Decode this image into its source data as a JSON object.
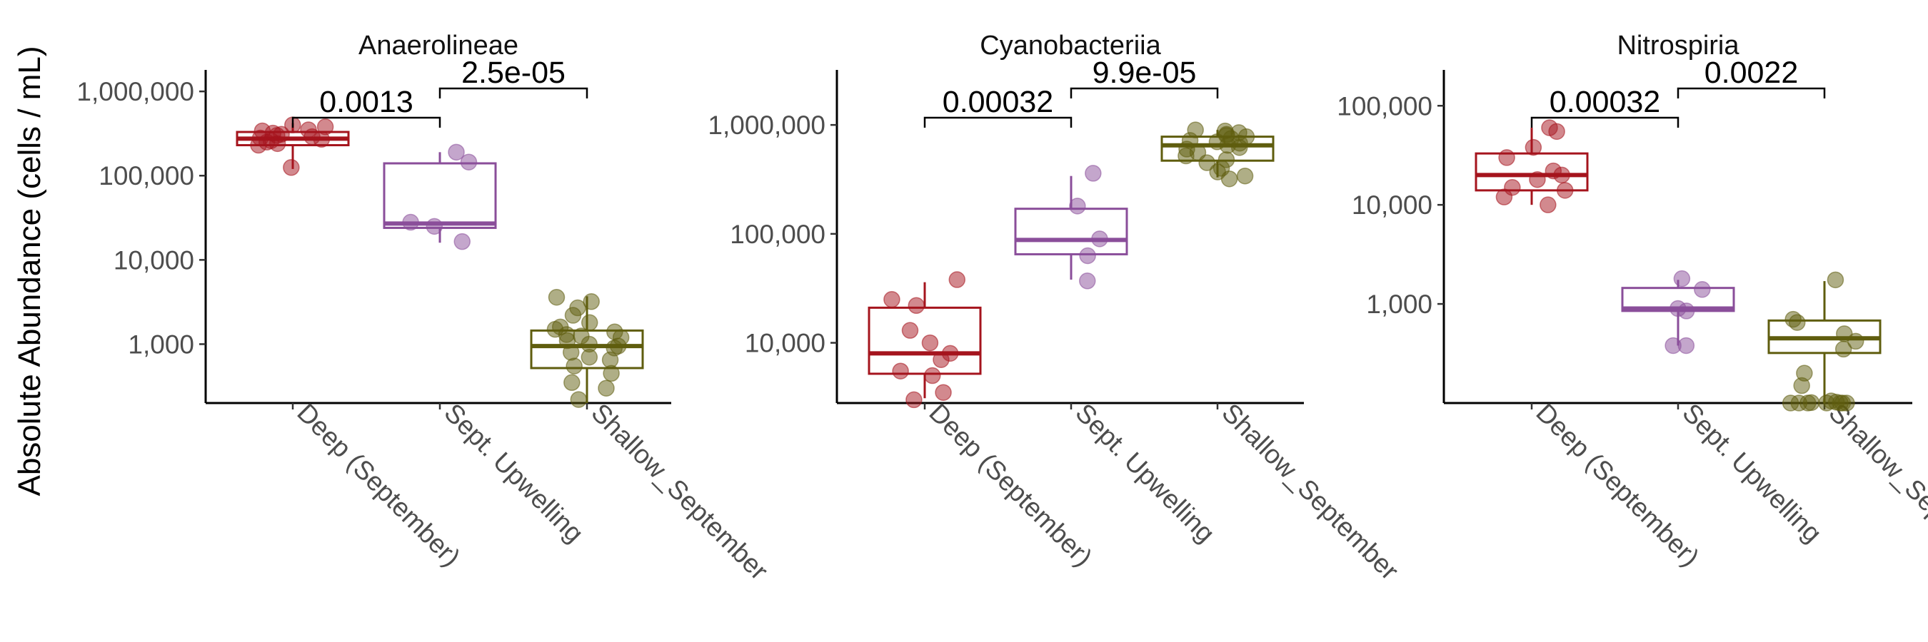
{
  "ylabel": "Absolute Abundance (cells / mL)",
  "groups": [
    "Deep (September)",
    "Sept. Upwelling",
    "Shallow_September"
  ],
  "colors": {
    "Deep (September)": "#a5141d",
    "Sept. Upwelling": "#8a4e9a",
    "Shallow_September": "#5f5d0e"
  },
  "chart_data": [
    {
      "type": "box",
      "title": "Anaerolineae",
      "scale": "log10",
      "ylim": [
        200,
        1800000
      ],
      "ticks": [
        1000,
        10000,
        100000,
        1000000
      ],
      "tick_labels": [
        "1,000",
        "10,000",
        "100,000",
        "1,000,000"
      ],
      "boxes": [
        {
          "group": "Deep (September)",
          "q1": 230000,
          "median": 275000,
          "q3": 330000,
          "low": 120000,
          "high": 420000,
          "points": [
            230000,
            260000,
            280000,
            300000,
            320000,
            340000,
            380000,
            250000,
            310000,
            270000,
            350000,
            290000,
            125000,
            240000,
            400000
          ]
        },
        {
          "group": "Sept. Upwelling",
          "q1": 24000,
          "median": 27000,
          "q3": 140000,
          "low": 16000,
          "high": 190000,
          "points": [
            145000,
            190000,
            28000,
            25000,
            16500
          ]
        },
        {
          "group": "Shallow_September",
          "q1": 520,
          "median": 950,
          "q3": 1450,
          "low": 200,
          "high": 3700,
          "points": [
            3600,
            3200,
            2700,
            2200,
            1800,
            1600,
            1500,
            1400,
            1300,
            1250,
            1200,
            1100,
            1000,
            950,
            900,
            800,
            700,
            650,
            550,
            450,
            350,
            300,
            220
          ]
        }
      ],
      "brackets": [
        {
          "from": "Deep (September)",
          "to": "Sept. Upwelling",
          "label": "0.0013"
        },
        {
          "from": "Sept. Upwelling",
          "to": "Shallow_September",
          "label": "2.5e-05"
        }
      ]
    },
    {
      "type": "box",
      "title": "Cyanobacteriia",
      "scale": "log10",
      "ylim": [
        2800,
        3200000
      ],
      "ticks": [
        10000,
        100000,
        1000000
      ],
      "tick_labels": [
        "10,000",
        "100,000",
        "1,000,000"
      ],
      "boxes": [
        {
          "group": "Deep (September)",
          "q1": 5200,
          "median": 8000,
          "q3": 21000,
          "low": 3100,
          "high": 36000,
          "points": [
            38000,
            25000,
            22000,
            13000,
            10000,
            8000,
            7000,
            5500,
            5000,
            3500,
            3000
          ]
        },
        {
          "group": "Sept. Upwelling",
          "q1": 65000,
          "median": 88000,
          "q3": 170000,
          "low": 38000,
          "high": 340000,
          "points": [
            360000,
            180000,
            90000,
            63000,
            37000
          ]
        },
        {
          "group": "Shallow_September",
          "q1": 470000,
          "median": 650000,
          "q3": 780000,
          "low": 330000,
          "high": 900000,
          "points": [
            900000,
            880000,
            850000,
            820000,
            800000,
            780000,
            750000,
            720000,
            700000,
            680000,
            650000,
            620000,
            600000,
            560000,
            520000,
            480000,
            450000,
            400000,
            370000,
            340000,
            320000
          ]
        }
      ],
      "brackets": [
        {
          "from": "Deep (September)",
          "to": "Sept. Upwelling",
          "label": "0.00032"
        },
        {
          "from": "Sept. Upwelling",
          "to": "Shallow_September",
          "label": "9.9e-05"
        }
      ]
    },
    {
      "type": "box",
      "title": "Nitrospiria",
      "scale": "log10",
      "ylim": [
        100,
        230000
      ],
      "ticks": [
        1000,
        10000,
        100000
      ],
      "tick_labels": [
        "1,000",
        "10,000",
        "100,000"
      ],
      "boxes": [
        {
          "group": "Deep (September)",
          "q1": 14000,
          "median": 20000,
          "q3": 33000,
          "low": 10000,
          "high": 60000,
          "points": [
            60000,
            55000,
            38000,
            30000,
            22000,
            20000,
            18000,
            15000,
            14000,
            12000,
            10000
          ]
        },
        {
          "group": "Sept. Upwelling",
          "q1": 850,
          "median": 900,
          "q3": 1450,
          "low": 380,
          "high": 1750,
          "points": [
            1800,
            1400,
            900,
            850,
            380,
            380
          ]
        },
        {
          "group": "Shallow_September",
          "q1": 320,
          "median": 450,
          "q3": 680,
          "low": 100,
          "high": 1700,
          "points": [
            1750,
            700,
            650,
            500,
            420,
            350,
            200,
            150,
            105,
            102,
            101,
            100,
            100,
            100,
            100,
            100,
            100,
            100
          ]
        }
      ],
      "brackets": [
        {
          "from": "Deep (September)",
          "to": "Sept. Upwelling",
          "label": "0.00032"
        },
        {
          "from": "Sept. Upwelling",
          "to": "Shallow_September",
          "label": "0.0022"
        }
      ]
    }
  ]
}
